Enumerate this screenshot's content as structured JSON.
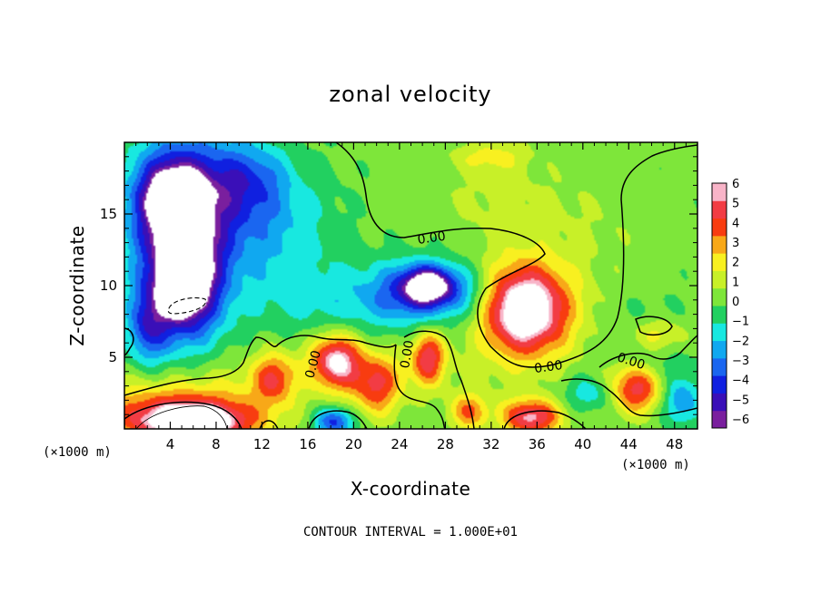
{
  "chart_data": {
    "type": "heatmap",
    "title": "zonal velocity",
    "xlabel": "X-coordinate",
    "ylabel": "Z-coordinate",
    "x_unit": "(×1000 m)",
    "y_unit": "(×1000 m)",
    "xlim": [
      0,
      50
    ],
    "ylim": [
      0,
      20
    ],
    "xticks": [
      4,
      8,
      12,
      16,
      20,
      24,
      28,
      32,
      36,
      40,
      44,
      48
    ],
    "yticks": [
      5,
      10,
      15
    ],
    "colorbar": {
      "levels": [
        -6,
        -5,
        -4,
        -3,
        -2,
        -1,
        0,
        1,
        2,
        3,
        4,
        5,
        6
      ],
      "labels": [
        "6",
        "5",
        "4",
        "3",
        "2",
        "1",
        "0",
        "−1",
        "−2",
        "−3",
        "−4",
        "−5",
        "−6"
      ],
      "colors": [
        "#7a1f9e",
        "#3a0fb8",
        "#1020e0",
        "#1a66f0",
        "#10a8f0",
        "#18e8e0",
        "#22d060",
        "#7ee63a",
        "#c8f028",
        "#f8f020",
        "#f8a818",
        "#f83c10",
        "#f23c44",
        "#f8b4c8"
      ]
    },
    "contour_labels": [
      {
        "text": "0.00",
        "x": 16.5,
        "y": 4.5,
        "rotate": -75
      },
      {
        "text": "0.00",
        "x": 26.8,
        "y": 13.3,
        "rotate": -8
      },
      {
        "text": "0.00",
        "x": 24.7,
        "y": 5.2,
        "rotate": -80
      },
      {
        "text": "0.00",
        "x": 37.0,
        "y": 4.3,
        "rotate": -8
      },
      {
        "text": "0.00",
        "x": 44.2,
        "y": 4.7,
        "rotate": 18
      }
    ],
    "features": [
      {
        "kind": "blob",
        "x": 5.5,
        "y": 16.5,
        "rx": 6,
        "ry": 5,
        "value": -4.5
      },
      {
        "kind": "blob",
        "x": 5.0,
        "y": 11.5,
        "rx": 5,
        "ry": 7,
        "value": -5.5
      },
      {
        "kind": "blob",
        "x": 4.0,
        "y": 16.0,
        "rx": 3,
        "ry": 3,
        "value": -5.2
      },
      {
        "kind": "blob",
        "x": 5.2,
        "y": 10.2,
        "rx": 3,
        "ry": 3.6,
        "value": -7
      },
      {
        "kind": "blob",
        "x": 13.0,
        "y": 14.0,
        "rx": 6,
        "ry": 5,
        "value": -2.2
      },
      {
        "kind": "blob",
        "x": 19.0,
        "y": 9.0,
        "rx": 9,
        "ry": 3,
        "value": -1.6
      },
      {
        "kind": "blob",
        "x": 11.0,
        "y": 17.5,
        "rx": 4,
        "ry": 3,
        "value": -2.5
      },
      {
        "kind": "blob",
        "x": 2.0,
        "y": 7.0,
        "rx": 2,
        "ry": 3,
        "value": -3.5
      },
      {
        "kind": "blob",
        "x": 32.0,
        "y": 19.0,
        "rx": 4,
        "ry": 1.3,
        "value": 2.5
      },
      {
        "kind": "blob",
        "x": 33.0,
        "y": 16.0,
        "rx": 8,
        "ry": 3,
        "value": 1.3
      },
      {
        "kind": "blob",
        "x": 42.0,
        "y": 14.0,
        "rx": 6,
        "ry": 4,
        "value": 0.8
      },
      {
        "kind": "blob",
        "x": 26.5,
        "y": 10.0,
        "rx": 2.6,
        "ry": 1.5,
        "value": -7
      },
      {
        "kind": "blob",
        "x": 25.5,
        "y": 9.5,
        "rx": 5,
        "ry": 2.6,
        "value": -3.5
      },
      {
        "kind": "blob",
        "x": 30.0,
        "y": 9.5,
        "rx": 3,
        "ry": 2.5,
        "value": -1.8
      },
      {
        "kind": "blob",
        "x": 35.0,
        "y": 8.3,
        "rx": 4.2,
        "ry": 3.4,
        "value": 8
      },
      {
        "kind": "blob",
        "x": 35.0,
        "y": 8.5,
        "rx": 6.5,
        "ry": 5.5,
        "value": 2.5
      },
      {
        "kind": "blob",
        "x": 46.0,
        "y": 6.0,
        "rx": 4,
        "ry": 3,
        "value": -1.5
      },
      {
        "kind": "blob",
        "x": 17.0,
        "y": 4.0,
        "rx": 14,
        "ry": 2.5,
        "value": 1.5
      },
      {
        "kind": "blob",
        "x": 4.5,
        "y": 1.5,
        "rx": 9,
        "ry": 2.5,
        "value": 4.5
      },
      {
        "kind": "blob",
        "x": 6.0,
        "y": 0.4,
        "rx": 6,
        "ry": 1.6,
        "value": 8
      },
      {
        "kind": "blob",
        "x": 13.0,
        "y": 3.5,
        "rx": 2,
        "ry": 2,
        "value": 4.5
      },
      {
        "kind": "blob",
        "x": 18.5,
        "y": 4.8,
        "rx": 2.4,
        "ry": 2.2,
        "value": 7
      },
      {
        "kind": "blob",
        "x": 22.0,
        "y": 3.0,
        "rx": 2.5,
        "ry": 2.5,
        "value": 5
      },
      {
        "kind": "blob",
        "x": 26.5,
        "y": 5.0,
        "rx": 1.7,
        "ry": 2.2,
        "value": 6
      },
      {
        "kind": "blob",
        "x": 30.0,
        "y": 1.2,
        "rx": 2,
        "ry": 1.5,
        "value": 4.5
      },
      {
        "kind": "blob",
        "x": 18.3,
        "y": 0.5,
        "rx": 2,
        "ry": 1.2,
        "value": -5
      },
      {
        "kind": "blob",
        "x": 35.5,
        "y": 0.8,
        "rx": 3,
        "ry": 1.5,
        "value": 7
      },
      {
        "kind": "blob",
        "x": 44.5,
        "y": 2.8,
        "rx": 3,
        "ry": 2,
        "value": 6.5
      },
      {
        "kind": "blob",
        "x": 46.5,
        "y": 6.5,
        "rx": 3,
        "ry": 1.5,
        "value": 4
      },
      {
        "kind": "blob",
        "x": 41.0,
        "y": 2.5,
        "rx": 3,
        "ry": 1.5,
        "value": -2.5
      },
      {
        "kind": "blob",
        "x": 48.5,
        "y": 2.0,
        "rx": 2,
        "ry": 2,
        "value": -3.5
      }
    ],
    "background_value": 0.3
  },
  "footer": {
    "contour_interval": "CONTOUR INTERVAL = 1.000E+01"
  }
}
